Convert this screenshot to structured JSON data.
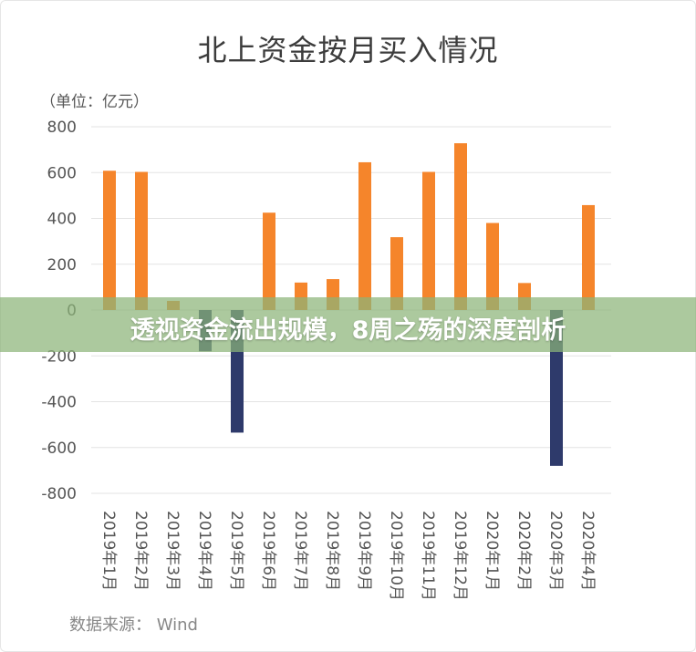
{
  "overlay": {
    "headline": "透视资金流出规模，8周之殇的深度剖析"
  },
  "chart_data": {
    "type": "bar",
    "title": "北上资金按月买入情况",
    "unit_label": "（单位：亿元）",
    "source": "数据来源： Wind",
    "categories": [
      "2019年1月",
      "2019年2月",
      "2019年3月",
      "2019年4月",
      "2019年5月",
      "2019年6月",
      "2019年7月",
      "2019年8月",
      "2019年9月",
      "2019年10月",
      "2019年11月",
      "2019年12月",
      "2020年1月",
      "2020年2月",
      "2020年3月",
      "2020年4月"
    ],
    "values": [
      608,
      603,
      40,
      -180,
      -535,
      425,
      120,
      135,
      645,
      318,
      603,
      728,
      380,
      118,
      -680,
      458
    ],
    "yticks": [
      800,
      600,
      400,
      200,
      0,
      -200,
      -400,
      -600,
      -800
    ],
    "ylim": [
      -800,
      800
    ],
    "grid": true,
    "colors": {
      "positive": "#f5852b",
      "negative": "#2e3a6b",
      "grid": "#e3e3e3",
      "tick": "#555555"
    }
  }
}
